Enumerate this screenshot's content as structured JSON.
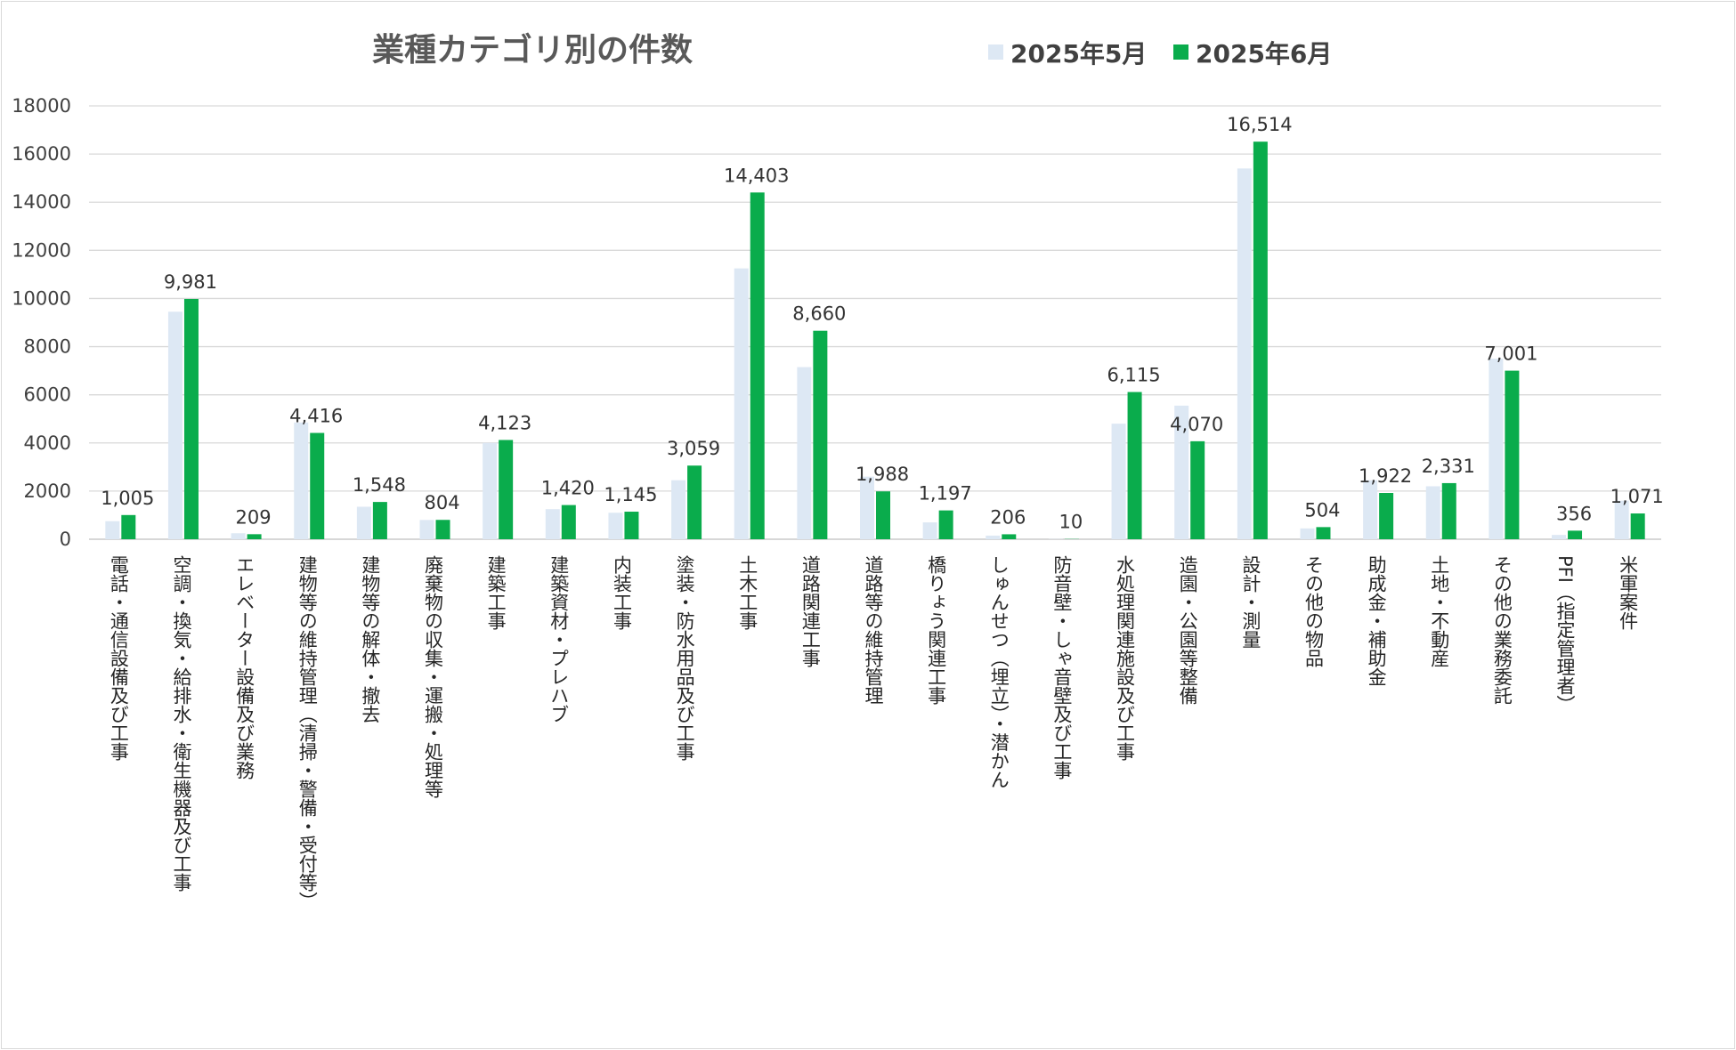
{
  "chart_data": {
    "type": "bar",
    "title": "業種カテゴリ別の件数",
    "xlabel": "",
    "ylabel": "",
    "ylim": [
      0,
      18000
    ],
    "yticks": [
      0,
      2000,
      4000,
      6000,
      8000,
      10000,
      12000,
      14000,
      16000,
      18000
    ],
    "grid": true,
    "legend_position": "top",
    "categories": [
      "電話・通信設備及び工事",
      "空調・換気・給排水・衛生機器及び工事",
      "エレベーター設備及び業務",
      "建物等の維持管理（清掃・警備・受付等）",
      "建物等の解体・撤去",
      "廃棄物の収集・運搬・処理等",
      "建築工事",
      "建築資材・プレハブ",
      "内装工事",
      "塗装・防水用品及び工事",
      "土木工事",
      "道路関連工事",
      "道路等の維持管理",
      "橋りょう関連工事",
      "しゅんせつ（埋立）・潜かん",
      "防音壁・しゃ音壁及び工事",
      "水処理関連施設及び工事",
      "造園・公園等整備",
      "設計・測量",
      "その他の物品",
      "助成金・補助金",
      "土地・不動産",
      "その他の業務委託",
      "PFI（指定管理者）",
      "米軍案件"
    ],
    "series": [
      {
        "name": "2025年5月",
        "color": "#dde8f4",
        "values": [
          750,
          9450,
          250,
          4850,
          1350,
          800,
          4000,
          1250,
          1100,
          2450,
          11250,
          7150,
          2600,
          700,
          150,
          10,
          4800,
          5550,
          15400,
          450,
          2450,
          2200,
          7500,
          180,
          1600
        ],
        "labels": []
      },
      {
        "name": "2025年6月",
        "color": "#0aac4c",
        "values": [
          1005,
          9981,
          209,
          4416,
          1548,
          804,
          4123,
          1420,
          1145,
          3059,
          14403,
          8660,
          1988,
          1197,
          206,
          10,
          6115,
          4070,
          16514,
          504,
          1922,
          2331,
          7001,
          356,
          1071
        ],
        "labels": [
          "1,005",
          "9,981",
          "209",
          "4,416",
          "1,548",
          "804",
          "4,123",
          "1,420",
          "1,145",
          "3,059",
          "14,403",
          "8,660",
          "1,988",
          "1,197",
          "206",
          "10",
          "6,115",
          "4,070",
          "16,514",
          "504",
          "1,922",
          "2,331",
          "7,001",
          "356",
          "1,071"
        ]
      }
    ],
    "colors": {
      "grid": "#d9d9d9",
      "axis": "#bfbfbf"
    }
  }
}
